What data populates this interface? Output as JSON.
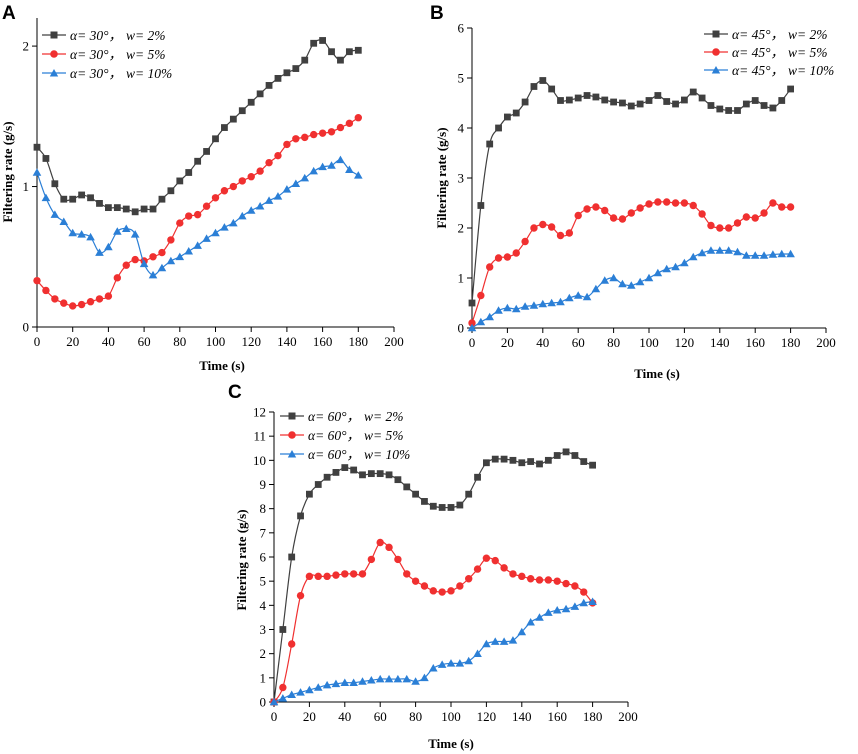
{
  "chart_data": [
    {
      "type": "line",
      "panel_label": "A",
      "xlabel": "Time (s)",
      "ylabel": "Filtering rate (g/s)",
      "xlim": [
        0,
        200
      ],
      "ylim": [
        0,
        2.2
      ],
      "xticks": [
        0,
        20,
        40,
        60,
        80,
        100,
        120,
        140,
        160,
        180,
        200
      ],
      "yticks": [
        0,
        1,
        2
      ],
      "legend_position": "top-left",
      "series": [
        {
          "alpha": "α= 30°，",
          "w": "w= 2%",
          "color": "#404040",
          "marker": "square",
          "x": [
            0,
            5,
            10,
            15,
            20,
            25,
            30,
            35,
            40,
            45,
            50,
            55,
            60,
            65,
            70,
            75,
            80,
            85,
            90,
            95,
            100,
            105,
            110,
            115,
            120,
            125,
            130,
            135,
            140,
            145,
            150,
            155,
            160,
            165,
            170,
            175,
            180
          ],
          "values": [
            1.28,
            1.2,
            1.02,
            0.91,
            0.91,
            0.94,
            0.92,
            0.88,
            0.85,
            0.85,
            0.84,
            0.82,
            0.84,
            0.84,
            0.91,
            0.97,
            1.04,
            1.1,
            1.18,
            1.25,
            1.34,
            1.42,
            1.48,
            1.54,
            1.6,
            1.66,
            1.72,
            1.77,
            1.81,
            1.84,
            1.9,
            2.02,
            2.04,
            1.96,
            1.9,
            1.96,
            1.97
          ]
        },
        {
          "alpha": "α= 30°，",
          "w": "w= 5%",
          "color": "#f03030",
          "marker": "circle",
          "x": [
            0,
            5,
            10,
            15,
            20,
            25,
            30,
            35,
            40,
            45,
            50,
            55,
            60,
            65,
            70,
            75,
            80,
            85,
            90,
            95,
            100,
            105,
            110,
            115,
            120,
            125,
            130,
            135,
            140,
            145,
            150,
            155,
            160,
            165,
            170,
            175,
            180
          ],
          "values": [
            0.33,
            0.26,
            0.2,
            0.17,
            0.15,
            0.16,
            0.18,
            0.2,
            0.22,
            0.35,
            0.44,
            0.48,
            0.47,
            0.5,
            0.53,
            0.62,
            0.74,
            0.79,
            0.8,
            0.86,
            0.92,
            0.97,
            1.0,
            1.04,
            1.07,
            1.11,
            1.17,
            1.22,
            1.3,
            1.34,
            1.35,
            1.37,
            1.38,
            1.39,
            1.42,
            1.45,
            1.49
          ]
        },
        {
          "alpha": "α= 30°，",
          "w": "w= 10%",
          "color": "#2b7fd6",
          "marker": "triangle",
          "x": [
            0,
            5,
            10,
            15,
            20,
            25,
            30,
            35,
            40,
            45,
            50,
            55,
            60,
            65,
            70,
            75,
            80,
            85,
            90,
            95,
            100,
            105,
            110,
            115,
            120,
            125,
            130,
            135,
            140,
            145,
            150,
            155,
            160,
            165,
            170,
            175,
            180
          ],
          "values": [
            1.1,
            0.92,
            0.8,
            0.75,
            0.67,
            0.66,
            0.64,
            0.53,
            0.57,
            0.68,
            0.7,
            0.66,
            0.45,
            0.37,
            0.42,
            0.47,
            0.5,
            0.54,
            0.58,
            0.63,
            0.67,
            0.71,
            0.74,
            0.79,
            0.83,
            0.86,
            0.9,
            0.93,
            0.98,
            1.02,
            1.06,
            1.11,
            1.14,
            1.15,
            1.19,
            1.12,
            1.08
          ]
        }
      ]
    },
    {
      "type": "line",
      "panel_label": "B",
      "xlabel": "Time (s)",
      "ylabel": "Filtering rate (g/s)",
      "xlim": [
        0,
        200
      ],
      "ylim": [
        0,
        6
      ],
      "xticks": [
        0,
        20,
        40,
        60,
        80,
        100,
        120,
        140,
        160,
        180,
        200
      ],
      "yticks": [
        0,
        1,
        2,
        3,
        4,
        5,
        6
      ],
      "legend_position": "top-right",
      "series": [
        {
          "alpha": "α= 45°，",
          "w": "w= 2%",
          "color": "#404040",
          "marker": "square",
          "x": [
            0,
            5,
            10,
            15,
            20,
            25,
            30,
            35,
            40,
            45,
            50,
            55,
            60,
            65,
            70,
            75,
            80,
            85,
            90,
            95,
            100,
            105,
            110,
            115,
            120,
            125,
            130,
            135,
            140,
            145,
            150,
            155,
            160,
            165,
            170,
            175,
            180
          ],
          "values": [
            0.5,
            2.45,
            3.68,
            4.0,
            4.22,
            4.3,
            4.52,
            4.83,
            4.95,
            4.78,
            4.55,
            4.56,
            4.6,
            4.65,
            4.62,
            4.56,
            4.52,
            4.5,
            4.44,
            4.48,
            4.55,
            4.65,
            4.53,
            4.48,
            4.56,
            4.72,
            4.6,
            4.45,
            4.38,
            4.35,
            4.35,
            4.48,
            4.55,
            4.45,
            4.4,
            4.55,
            4.78
          ]
        },
        {
          "alpha": "α= 45°，",
          "w": "w= 5%",
          "color": "#f03030",
          "marker": "circle",
          "x": [
            0,
            5,
            10,
            15,
            20,
            25,
            30,
            35,
            40,
            45,
            50,
            55,
            60,
            65,
            70,
            75,
            80,
            85,
            90,
            95,
            100,
            105,
            110,
            115,
            120,
            125,
            130,
            135,
            140,
            145,
            150,
            155,
            160,
            165,
            170,
            175,
            180
          ],
          "values": [
            0.1,
            0.65,
            1.22,
            1.4,
            1.42,
            1.5,
            1.73,
            2.0,
            2.07,
            2.02,
            1.85,
            1.9,
            2.25,
            2.38,
            2.42,
            2.35,
            2.2,
            2.18,
            2.3,
            2.4,
            2.48,
            2.52,
            2.52,
            2.5,
            2.5,
            2.45,
            2.28,
            2.05,
            2.0,
            2.0,
            2.1,
            2.22,
            2.2,
            2.3,
            2.5,
            2.42,
            2.42
          ]
        },
        {
          "alpha": "α= 45°，",
          "w": "w= 10%",
          "color": "#2b7fd6",
          "marker": "triangle",
          "x": [
            0,
            5,
            10,
            15,
            20,
            25,
            30,
            35,
            40,
            45,
            50,
            55,
            60,
            65,
            70,
            75,
            80,
            85,
            90,
            95,
            100,
            105,
            110,
            115,
            120,
            125,
            130,
            135,
            140,
            145,
            150,
            155,
            160,
            165,
            170,
            175,
            180
          ],
          "values": [
            0.0,
            0.12,
            0.22,
            0.35,
            0.4,
            0.38,
            0.43,
            0.45,
            0.48,
            0.5,
            0.52,
            0.6,
            0.65,
            0.62,
            0.78,
            0.95,
            1.0,
            0.88,
            0.85,
            0.92,
            1.0,
            1.1,
            1.18,
            1.22,
            1.3,
            1.42,
            1.5,
            1.55,
            1.55,
            1.55,
            1.52,
            1.45,
            1.45,
            1.45,
            1.47,
            1.48,
            1.48
          ]
        }
      ]
    },
    {
      "type": "line",
      "panel_label": "C",
      "xlabel": "Time (s)",
      "ylabel": "Filtering rate (g/s)",
      "xlim": [
        0,
        200
      ],
      "ylim": [
        0,
        12
      ],
      "xticks": [
        0,
        20,
        40,
        60,
        80,
        100,
        120,
        140,
        160,
        180,
        200
      ],
      "yticks": [
        0,
        1,
        2,
        3,
        4,
        5,
        6,
        7,
        8,
        9,
        10,
        11,
        12
      ],
      "legend_position": "top-left",
      "series": [
        {
          "alpha": "α= 60°，",
          "w": "w= 2%",
          "color": "#404040",
          "marker": "square",
          "x": [
            0,
            5,
            10,
            15,
            20,
            25,
            30,
            35,
            40,
            45,
            50,
            55,
            60,
            65,
            70,
            75,
            80,
            85,
            90,
            95,
            100,
            105,
            110,
            115,
            120,
            125,
            130,
            135,
            140,
            145,
            150,
            155,
            160,
            165,
            170,
            175,
            180
          ],
          "values": [
            0.0,
            3.0,
            6.0,
            7.7,
            8.6,
            9.0,
            9.3,
            9.5,
            9.7,
            9.6,
            9.4,
            9.45,
            9.45,
            9.4,
            9.2,
            8.9,
            8.6,
            8.3,
            8.1,
            8.05,
            8.05,
            8.15,
            8.6,
            9.3,
            9.9,
            10.05,
            10.05,
            10.0,
            9.9,
            9.95,
            9.85,
            10.0,
            10.2,
            10.35,
            10.2,
            9.95,
            9.8
          ]
        },
        {
          "alpha": "α= 60°，",
          "w": "w= 5%",
          "color": "#f03030",
          "marker": "circle",
          "x": [
            0,
            5,
            10,
            15,
            20,
            25,
            30,
            35,
            40,
            45,
            50,
            55,
            60,
            65,
            70,
            75,
            80,
            85,
            90,
            95,
            100,
            105,
            110,
            115,
            120,
            125,
            130,
            135,
            140,
            145,
            150,
            155,
            160,
            165,
            170,
            175,
            180
          ],
          "values": [
            0.0,
            0.6,
            2.4,
            4.4,
            5.2,
            5.2,
            5.2,
            5.25,
            5.3,
            5.3,
            5.3,
            5.9,
            6.6,
            6.4,
            5.9,
            5.3,
            5.0,
            4.8,
            4.6,
            4.55,
            4.6,
            4.8,
            5.1,
            5.5,
            5.95,
            5.85,
            5.55,
            5.3,
            5.2,
            5.1,
            5.05,
            5.05,
            5.0,
            4.9,
            4.8,
            4.55,
            4.1
          ]
        },
        {
          "alpha": "α= 60°，",
          "w": "w= 10%",
          "color": "#2b7fd6",
          "marker": "triangle",
          "x": [
            0,
            5,
            10,
            15,
            20,
            25,
            30,
            35,
            40,
            45,
            50,
            55,
            60,
            65,
            70,
            75,
            80,
            85,
            90,
            95,
            100,
            105,
            110,
            115,
            120,
            125,
            130,
            135,
            140,
            145,
            150,
            155,
            160,
            165,
            170,
            175,
            180
          ],
          "values": [
            0.0,
            0.15,
            0.3,
            0.4,
            0.5,
            0.6,
            0.7,
            0.75,
            0.8,
            0.8,
            0.85,
            0.9,
            0.95,
            0.95,
            0.95,
            0.95,
            0.85,
            1.0,
            1.4,
            1.55,
            1.6,
            1.6,
            1.7,
            2.0,
            2.4,
            2.5,
            2.5,
            2.55,
            2.9,
            3.3,
            3.5,
            3.7,
            3.8,
            3.85,
            3.95,
            4.1,
            4.15
          ]
        }
      ]
    }
  ]
}
